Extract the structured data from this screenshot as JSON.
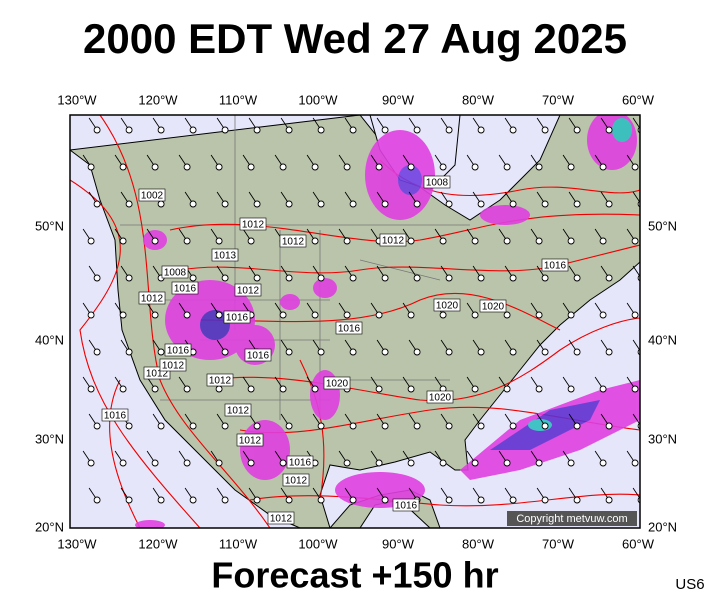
{
  "header": {
    "title": "2000 EDT Wed 27 Aug 2025"
  },
  "longitude_labels": [
    "130°W",
    "120°W",
    "110°W",
    "100°W",
    "90°W",
    "80°W",
    "70°W",
    "60°W"
  ],
  "latitude_labels": [
    "50°N",
    "40°N",
    "30°N",
    "20°N"
  ],
  "isobar_labels": [
    "1002",
    "1012",
    "1012",
    "1012",
    "1008",
    "1016",
    "1008",
    "1013",
    "1012",
    "1012",
    "1016",
    "1016",
    "1020",
    "1020",
    "1016",
    "1016",
    "1016",
    "1012",
    "1012",
    "1012",
    "1020",
    "1016",
    "1012",
    "1020",
    "1012",
    "1016",
    "1012",
    "1016",
    "1012"
  ],
  "footer": {
    "forecast": "Forecast +150 hr",
    "region": "US6",
    "copyright": "Copyright metvuw.com"
  }
}
